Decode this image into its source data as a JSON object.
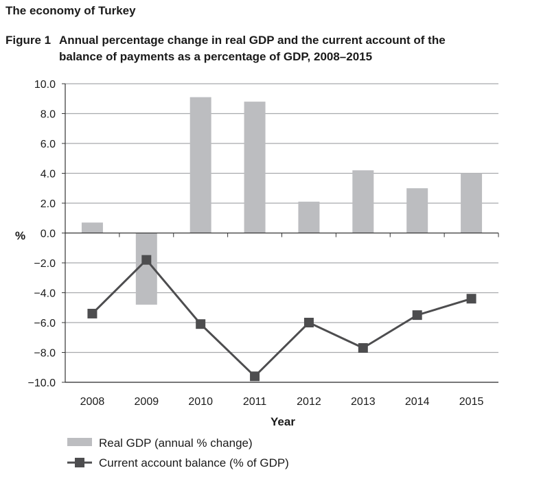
{
  "heading": "The economy of Turkey",
  "figure_number": "Figure 1",
  "figure_title_line1": "Annual percentage change in real GDP and the current account of the",
  "figure_title_line2": "balance of payments as a percentage of GDP, 2008–2015",
  "chart_data": {
    "type": "bar",
    "title": "Annual percentage change in real GDP and the current account of the balance of payments as a percentage of GDP, 2008–2015",
    "xlabel": "Year",
    "ylabel": "%",
    "ylim": [
      -10,
      10
    ],
    "categories": [
      "2008",
      "2009",
      "2010",
      "2011",
      "2012",
      "2013",
      "2014",
      "2015"
    ],
    "y_tick_labels": [
      "10.0",
      "8.0",
      "6.0",
      "4.0",
      "2.0",
      "0.0",
      "−2.0",
      "−4.0",
      "−6.0",
      "−8.0",
      "−10.0"
    ],
    "y_ticks": [
      10,
      8,
      6,
      4,
      2,
      0,
      -2,
      -4,
      -6,
      -8,
      -10
    ],
    "grid": true,
    "legend_position": "bottom-left",
    "series": [
      {
        "name": "Real GDP (annual % change)",
        "kind": "bar",
        "color": "#bcbdc0",
        "values": [
          0.7,
          -4.8,
          9.1,
          8.8,
          2.1,
          4.2,
          3.0,
          4.0
        ]
      },
      {
        "name": "Current account balance (% of GDP)",
        "kind": "line",
        "color": "#4d4d4f",
        "marker": "square",
        "values": [
          -5.4,
          -1.8,
          -6.1,
          -9.6,
          -6.0,
          -7.7,
          -5.5,
          -4.4
        ]
      }
    ]
  }
}
